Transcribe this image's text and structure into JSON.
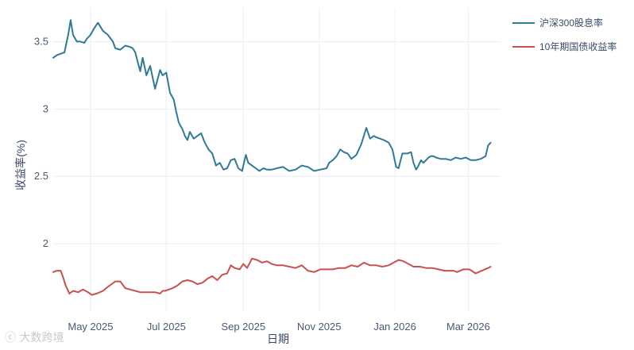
{
  "chart_data": {
    "type": "line",
    "title": "",
    "xlabel": "日期",
    "ylabel": "收益率(%)",
    "ylim": [
      1.5,
      3.75
    ],
    "xlim": [
      0,
      360
    ],
    "yticks": [
      2,
      2.5,
      3,
      3.5
    ],
    "ytick_labels": [
      "2",
      "2.5",
      "3",
      "3.5"
    ],
    "xticks": [
      {
        "x": 30,
        "label": "May 2025"
      },
      {
        "x": 91,
        "label": "Jul 2025"
      },
      {
        "x": 153,
        "label": "Sep 2025"
      },
      {
        "x": 214,
        "label": "Nov 2025"
      },
      {
        "x": 275,
        "label": "Jan 2026"
      },
      {
        "x": 334,
        "label": "Mar 2026"
      }
    ],
    "grid": true,
    "legend": "top-right",
    "series": [
      {
        "name": "沪深300股息率",
        "color": "#2e7a98",
        "x": [
          0,
          3,
          6,
          9,
          12,
          14,
          16,
          19,
          22,
          25,
          27,
          30,
          33,
          36,
          40,
          44,
          48,
          50,
          54,
          58,
          62,
          64,
          66,
          68,
          70,
          72,
          75,
          78,
          82,
          86,
          88,
          91,
          94,
          97,
          99,
          101,
          104,
          106,
          108,
          110,
          113,
          116,
          119,
          122,
          125,
          128,
          131,
          134,
          137,
          140,
          143,
          146,
          149,
          152,
          155,
          157,
          160,
          163,
          166,
          169,
          172,
          176,
          180,
          185,
          190,
          195,
          200,
          205,
          210,
          215,
          220,
          222,
          225,
          228,
          231,
          234,
          237,
          240,
          244,
          248,
          252,
          255,
          258,
          260,
          263,
          266,
          270,
          273,
          276,
          278,
          279,
          281,
          283,
          285,
          288,
          290,
          292,
          294,
          296,
          298,
          300,
          302,
          304,
          306,
          308,
          312,
          316,
          320,
          324,
          328,
          332,
          336,
          340,
          344,
          348,
          350,
          352
        ],
        "values": [
          3.38,
          3.4,
          3.41,
          3.42,
          3.55,
          3.66,
          3.55,
          3.5,
          3.5,
          3.49,
          3.52,
          3.55,
          3.6,
          3.64,
          3.58,
          3.55,
          3.5,
          3.45,
          3.44,
          3.47,
          3.46,
          3.45,
          3.42,
          3.35,
          3.28,
          3.38,
          3.25,
          3.32,
          3.15,
          3.29,
          3.25,
          3.27,
          3.12,
          3.07,
          2.98,
          2.9,
          2.85,
          2.8,
          2.77,
          2.83,
          2.78,
          2.8,
          2.82,
          2.75,
          2.7,
          2.67,
          2.58,
          2.6,
          2.55,
          2.56,
          2.62,
          2.63,
          2.56,
          2.54,
          2.66,
          2.6,
          2.58,
          2.56,
          2.54,
          2.56,
          2.55,
          2.55,
          2.56,
          2.57,
          2.54,
          2.55,
          2.58,
          2.57,
          2.54,
          2.55,
          2.56,
          2.6,
          2.62,
          2.65,
          2.7,
          2.68,
          2.67,
          2.63,
          2.66,
          2.74,
          2.86,
          2.78,
          2.8,
          2.79,
          2.78,
          2.77,
          2.75,
          2.7,
          2.57,
          2.56,
          2.6,
          2.67,
          2.67,
          2.67,
          2.68,
          2.6,
          2.55,
          2.58,
          2.62,
          2.6,
          2.62,
          2.64,
          2.65,
          2.65,
          2.64,
          2.63,
          2.63,
          2.62,
          2.64,
          2.63,
          2.64,
          2.62,
          2.62,
          2.63,
          2.65,
          2.73,
          2.75
        ]
      },
      {
        "name": "10年期国债收益率",
        "color": "#c8514e",
        "x": [
          0,
          3,
          6,
          8,
          10,
          13,
          16,
          20,
          24,
          28,
          31,
          35,
          40,
          44,
          47,
          50,
          54,
          58,
          62,
          66,
          70,
          74,
          78,
          82,
          86,
          88,
          90,
          93,
          96,
          100,
          104,
          108,
          112,
          116,
          120,
          124,
          128,
          132,
          136,
          140,
          143,
          146,
          150,
          153,
          156,
          160,
          164,
          168,
          172,
          176,
          180,
          185,
          190,
          195,
          200,
          205,
          210,
          215,
          220,
          225,
          230,
          235,
          240,
          245,
          250,
          255,
          260,
          265,
          270,
          272,
          274,
          278,
          282,
          286,
          290,
          295,
          300,
          305,
          310,
          315,
          320,
          322,
          325,
          330,
          335,
          340,
          345,
          350,
          352
        ],
        "values": [
          1.79,
          1.8,
          1.8,
          1.75,
          1.69,
          1.63,
          1.65,
          1.64,
          1.66,
          1.64,
          1.62,
          1.63,
          1.65,
          1.68,
          1.7,
          1.72,
          1.72,
          1.67,
          1.66,
          1.65,
          1.64,
          1.64,
          1.64,
          1.64,
          1.63,
          1.65,
          1.65,
          1.66,
          1.67,
          1.69,
          1.72,
          1.73,
          1.72,
          1.7,
          1.71,
          1.74,
          1.76,
          1.73,
          1.77,
          1.78,
          1.84,
          1.82,
          1.81,
          1.85,
          1.82,
          1.89,
          1.88,
          1.86,
          1.87,
          1.85,
          1.84,
          1.84,
          1.83,
          1.82,
          1.84,
          1.8,
          1.79,
          1.81,
          1.81,
          1.81,
          1.82,
          1.82,
          1.84,
          1.83,
          1.86,
          1.84,
          1.84,
          1.83,
          1.84,
          1.85,
          1.86,
          1.88,
          1.87,
          1.85,
          1.83,
          1.83,
          1.82,
          1.82,
          1.81,
          1.8,
          1.8,
          1.8,
          1.79,
          1.81,
          1.81,
          1.78,
          1.8,
          1.82,
          1.83
        ]
      }
    ]
  },
  "watermark": "ⓒ 大数跨境"
}
